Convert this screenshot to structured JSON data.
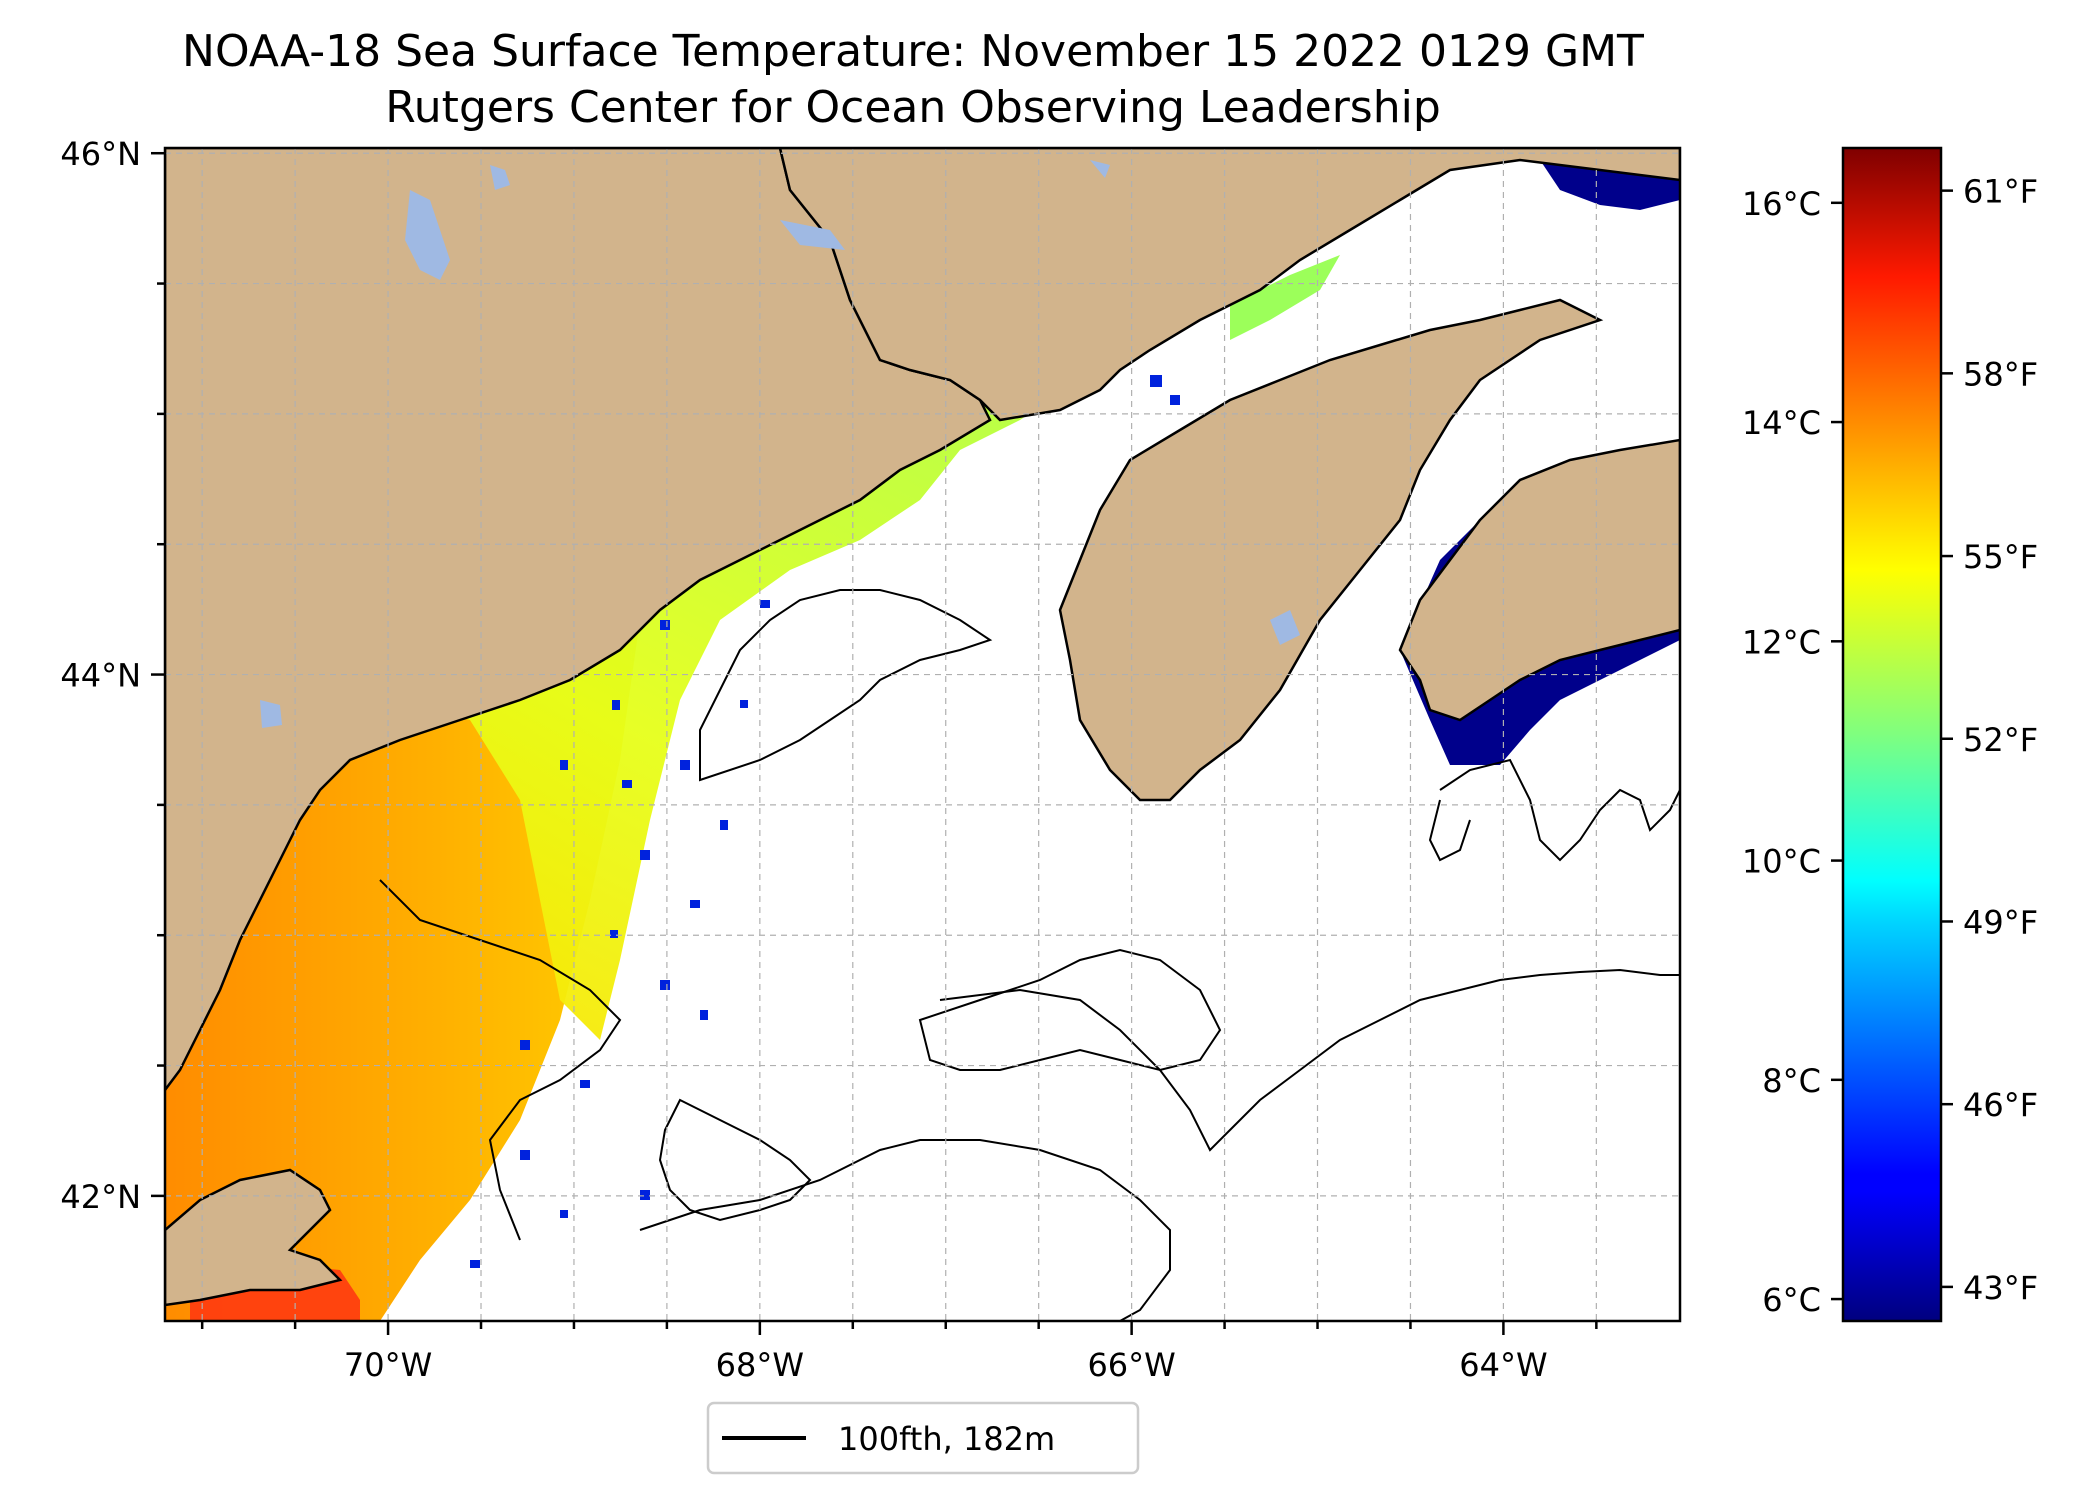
{
  "title": "NOAA-18 Sea Surface Temperature: November 15 2022 0129 GMT",
  "subtitle": "Rutgers Center for Ocean Observing Leadership",
  "map": {
    "lon_range": [
      -71.2,
      -63.05
    ],
    "lat_range": [
      41.52,
      46.02
    ],
    "x_ticks": [
      {
        "lon": -70,
        "label": "70°W"
      },
      {
        "lon": -68,
        "label": "68°W"
      },
      {
        "lon": -66,
        "label": "66°W"
      },
      {
        "lon": -64,
        "label": "64°W"
      }
    ],
    "y_ticks": [
      {
        "lat": 46,
        "label": "46°N"
      },
      {
        "lat": 44,
        "label": "44°N"
      },
      {
        "lat": 42,
        "label": "42°N"
      }
    ],
    "minor_lon_step": 0.5,
    "minor_lat_step": 0.5,
    "grid": true,
    "land_color": "#d2b48c",
    "lake_color": "#9fb9e3",
    "coast_color": "#000000"
  },
  "legend": {
    "label": "100fth, 182m",
    "placement": "bottom-center"
  },
  "colorbar": {
    "colormap": "jet",
    "range_c": [
      5.8,
      16.5
    ],
    "celsius_ticks": [
      {
        "v": 6,
        "label": "6°C"
      },
      {
        "v": 8,
        "label": "8°C"
      },
      {
        "v": 10,
        "label": "10°C"
      },
      {
        "v": 12,
        "label": "12°C"
      },
      {
        "v": 14,
        "label": "14°C"
      },
      {
        "v": 16,
        "label": "16°C"
      }
    ],
    "fahrenheit_ticks": [
      {
        "v": 43,
        "label": "43°F"
      },
      {
        "v": 46,
        "label": "46°F"
      },
      {
        "v": 49,
        "label": "49°F"
      },
      {
        "v": 52,
        "label": "52°F"
      },
      {
        "v": 55,
        "label": "55°F"
      },
      {
        "v": 58,
        "label": "58°F"
      },
      {
        "v": 61,
        "label": "61°F"
      }
    ]
  }
}
